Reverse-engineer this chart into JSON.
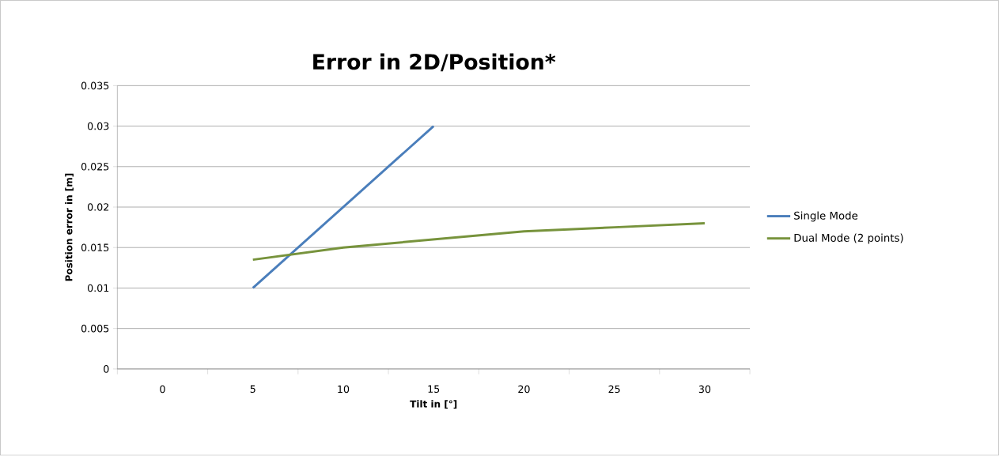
{
  "chart_data": {
    "type": "line",
    "title": "Error in 2D/Position*",
    "xlabel": "Tilt in [°]",
    "ylabel": "Position error in [m]",
    "categories": [
      "0",
      "5",
      "10",
      "15",
      "20",
      "25",
      "30"
    ],
    "series": [
      {
        "name": "Single Mode",
        "color": "#4a7ebb",
        "values": [
          null,
          0.01,
          0.02,
          0.03,
          null,
          null,
          null
        ]
      },
      {
        "name": "Dual Mode (2 points)",
        "color": "#77933c",
        "values": [
          null,
          0.0135,
          0.015,
          0.016,
          0.017,
          0.0175,
          0.018
        ]
      }
    ],
    "ylim": [
      0,
      0.035
    ],
    "yticks": [
      0,
      0.005,
      0.01,
      0.015,
      0.02,
      0.025,
      0.03,
      0.035
    ],
    "grid": "y",
    "legend": "right",
    "marker": "none",
    "line_style": "solid"
  }
}
